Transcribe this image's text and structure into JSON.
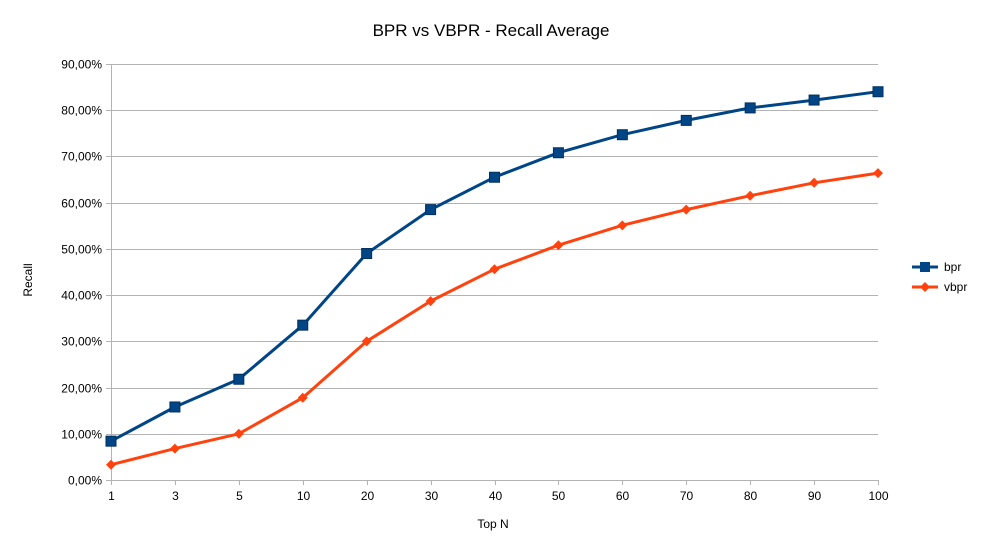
{
  "chart_data": {
    "type": "line",
    "title": "BPR vs VBPR - Recall Average",
    "xlabel": "Top N",
    "ylabel": "Recall",
    "categories": [
      "1",
      "3",
      "5",
      "10",
      "20",
      "30",
      "40",
      "50",
      "60",
      "70",
      "80",
      "90",
      "100"
    ],
    "yticks": [
      "0,00%",
      "10,00%",
      "20,00%",
      "30,00%",
      "40,00%",
      "50,00%",
      "60,00%",
      "70,00%",
      "80,00%",
      "90,00%"
    ],
    "ylim": [
      0,
      0.9
    ],
    "grid": true,
    "legend_position": "right",
    "series": [
      {
        "name": "bpr",
        "color": "#004586",
        "marker": "square",
        "values": [
          0.084,
          0.158,
          0.218,
          0.335,
          0.49,
          0.585,
          0.655,
          0.708,
          0.747,
          0.778,
          0.805,
          0.822,
          0.84
        ]
      },
      {
        "name": "vbpr",
        "color": "#ff420e",
        "marker": "diamond",
        "values": [
          0.033,
          0.068,
          0.1,
          0.178,
          0.3,
          0.387,
          0.456,
          0.508,
          0.551,
          0.585,
          0.615,
          0.643,
          0.664
        ]
      }
    ]
  }
}
